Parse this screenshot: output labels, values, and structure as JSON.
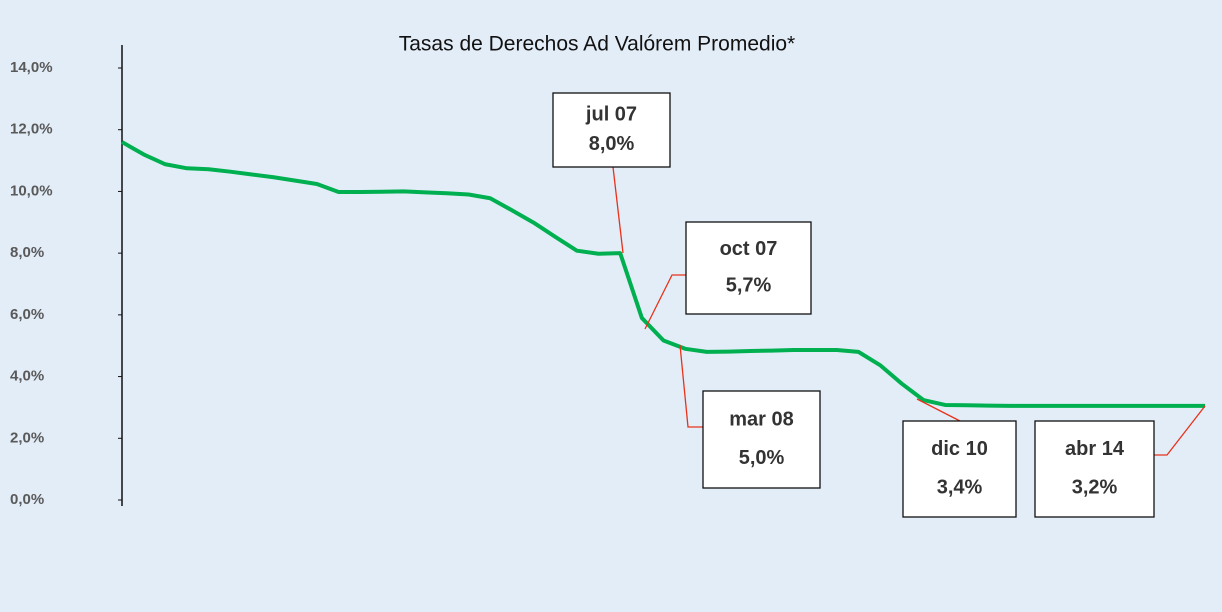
{
  "chart_data": {
    "type": "line",
    "title": "Tasas de Derechos Ad Valórem Promedio*",
    "categories": [
      null,
      null,
      null,
      null,
      null,
      null,
      null,
      null,
      null,
      null,
      null,
      null,
      null,
      null,
      null,
      null,
      null,
      null,
      null,
      null,
      null,
      null,
      null,
      null,
      null,
      null,
      null,
      null,
      null,
      null,
      null,
      null,
      null,
      null,
      null,
      null,
      null,
      null,
      null,
      null,
      null,
      null,
      null,
      null,
      null,
      null,
      null,
      null,
      null,
      null,
      null
    ],
    "series": [
      {
        "color": "#00b050",
        "values": [
          11.6,
          11.2,
          10.88,
          10.75,
          10.72,
          10.64,
          10.55,
          10.46,
          10.35,
          10.24,
          9.98,
          9.98,
          9.99,
          10.0,
          9.97,
          9.94,
          9.9,
          9.78,
          9.39,
          8.99,
          8.53,
          8.08,
          7.98,
          8.0,
          5.9,
          5.17,
          4.9,
          4.8,
          4.81,
          4.83,
          4.84,
          4.86,
          4.86,
          4.86,
          4.8,
          4.37,
          3.77,
          3.24,
          3.08,
          3.07,
          3.06,
          3.05,
          3.05,
          3.05,
          3.05,
          3.05,
          3.05,
          3.05,
          3.05,
          3.05,
          3.05
        ]
      }
    ],
    "ylim": [
      0,
      14
    ],
    "yticks": [
      {
        "value": 0,
        "label": "0,0%"
      },
      {
        "value": 2,
        "label": "2,0%"
      },
      {
        "value": 4,
        "label": "4,0%"
      },
      {
        "value": 6,
        "label": "6,0%"
      },
      {
        "value": 8,
        "label": "8,0%"
      },
      {
        "value": 10,
        "label": "10,0%"
      },
      {
        "value": 12,
        "label": "12,0%"
      },
      {
        "value": 14,
        "label": "14,0%"
      }
    ],
    "annotations": [
      {
        "label": "jul 07",
        "value_label": "8,0%"
      },
      {
        "label": "oct 07",
        "value_label": "5,7%"
      },
      {
        "label": "mar 08",
        "value_label": "5,0%"
      },
      {
        "label": "dic 10",
        "value_label": "3,4%"
      },
      {
        "label": "abr 14",
        "value_label": "3,2%"
      }
    ]
  }
}
